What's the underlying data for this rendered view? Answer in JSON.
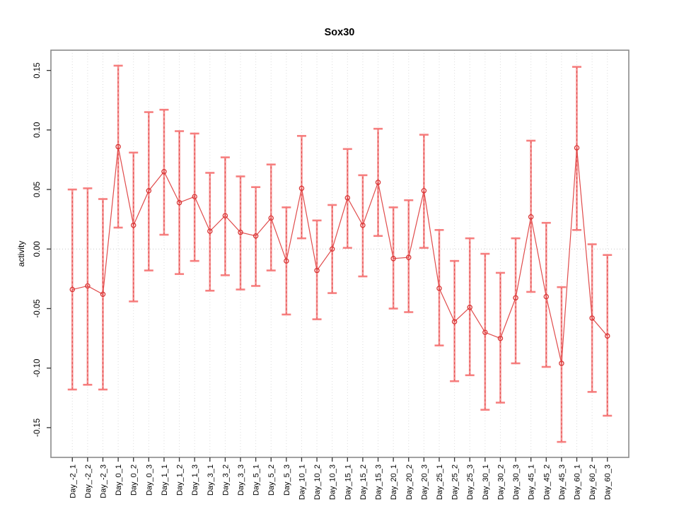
{
  "chart_data": {
    "type": "line",
    "title": "Sox30",
    "ylabel": "activity",
    "xlabel": "",
    "legend": "none",
    "grid": "vertical dotted gridline at every category; horizontal dotted line at y=0",
    "marker": "open-circle",
    "has_error_bars": true,
    "ylim": [
      -0.175,
      0.167
    ],
    "yticks": [
      -0.15,
      -0.1,
      -0.05,
      0.0,
      0.05,
      0.1,
      0.15
    ],
    "ytick_labels": [
      "-0.15",
      "-0.10",
      "-0.05",
      "0.00",
      "0.05",
      "0.10",
      "0.15"
    ],
    "categories": [
      "Day_-2_1",
      "Day_-2_2",
      "Day_-2_3",
      "Day_0_1",
      "Day_0_2",
      "Day_0_3",
      "Day_1_1",
      "Day_1_2",
      "Day_1_3",
      "Day_3_1",
      "Day_3_2",
      "Day_3_3",
      "Day_5_1",
      "Day_5_2",
      "Day_5_3",
      "Day_10_1",
      "Day_10_2",
      "Day_10_3",
      "Day_15_1",
      "Day_15_2",
      "Day_15_3",
      "Day_20_1",
      "Day_20_2",
      "Day_20_3",
      "Day_25_1",
      "Day_25_2",
      "Day_25_3",
      "Day_30_1",
      "Day_30_2",
      "Day_30_3",
      "Day_45_1",
      "Day_45_2",
      "Day_45_3",
      "Day_60_1",
      "Day_60_2",
      "Day_60_3"
    ],
    "series": [
      {
        "name": "activity",
        "values": [
          -0.034,
          -0.031,
          -0.038,
          0.086,
          0.02,
          0.049,
          0.065,
          0.039,
          0.044,
          0.015,
          0.028,
          0.014,
          0.011,
          0.026,
          -0.01,
          0.051,
          -0.018,
          0.0,
          0.043,
          0.02,
          0.056,
          -0.008,
          -0.007,
          0.049,
          -0.033,
          -0.061,
          -0.049,
          -0.07,
          -0.075,
          -0.041,
          0.027,
          -0.04,
          -0.096,
          0.085,
          -0.058,
          -0.073
        ],
        "error_low": [
          -0.118,
          -0.114,
          -0.118,
          0.018,
          -0.044,
          -0.018,
          0.012,
          -0.021,
          -0.01,
          -0.035,
          -0.022,
          -0.034,
          -0.031,
          -0.018,
          -0.055,
          0.009,
          -0.059,
          -0.037,
          0.001,
          -0.023,
          0.011,
          -0.05,
          -0.053,
          0.001,
          -0.081,
          -0.111,
          -0.106,
          -0.135,
          -0.129,
          -0.096,
          -0.036,
          -0.099,
          -0.162,
          0.016,
          -0.12,
          -0.14
        ],
        "error_high": [
          0.05,
          0.051,
          0.042,
          0.154,
          0.081,
          0.115,
          0.117,
          0.099,
          0.097,
          0.064,
          0.077,
          0.061,
          0.052,
          0.071,
          0.035,
          0.095,
          0.024,
          0.037,
          0.084,
          0.062,
          0.101,
          0.035,
          0.041,
          0.096,
          0.016,
          -0.01,
          0.009,
          -0.004,
          -0.02,
          0.009,
          0.091,
          0.022,
          -0.032,
          0.153,
          0.004,
          -0.005
        ]
      }
    ],
    "colors": {
      "line": "#e04b4b",
      "point": "#d93636",
      "error_bar": "#f58080",
      "error_bar_dash": "#dd4040",
      "error_cap": "#f57878",
      "grid": "#dcdcdc",
      "zero_line": "#c9c9c9",
      "box": "#8a8a8a",
      "tick": "#333333",
      "text": "#000000"
    }
  }
}
